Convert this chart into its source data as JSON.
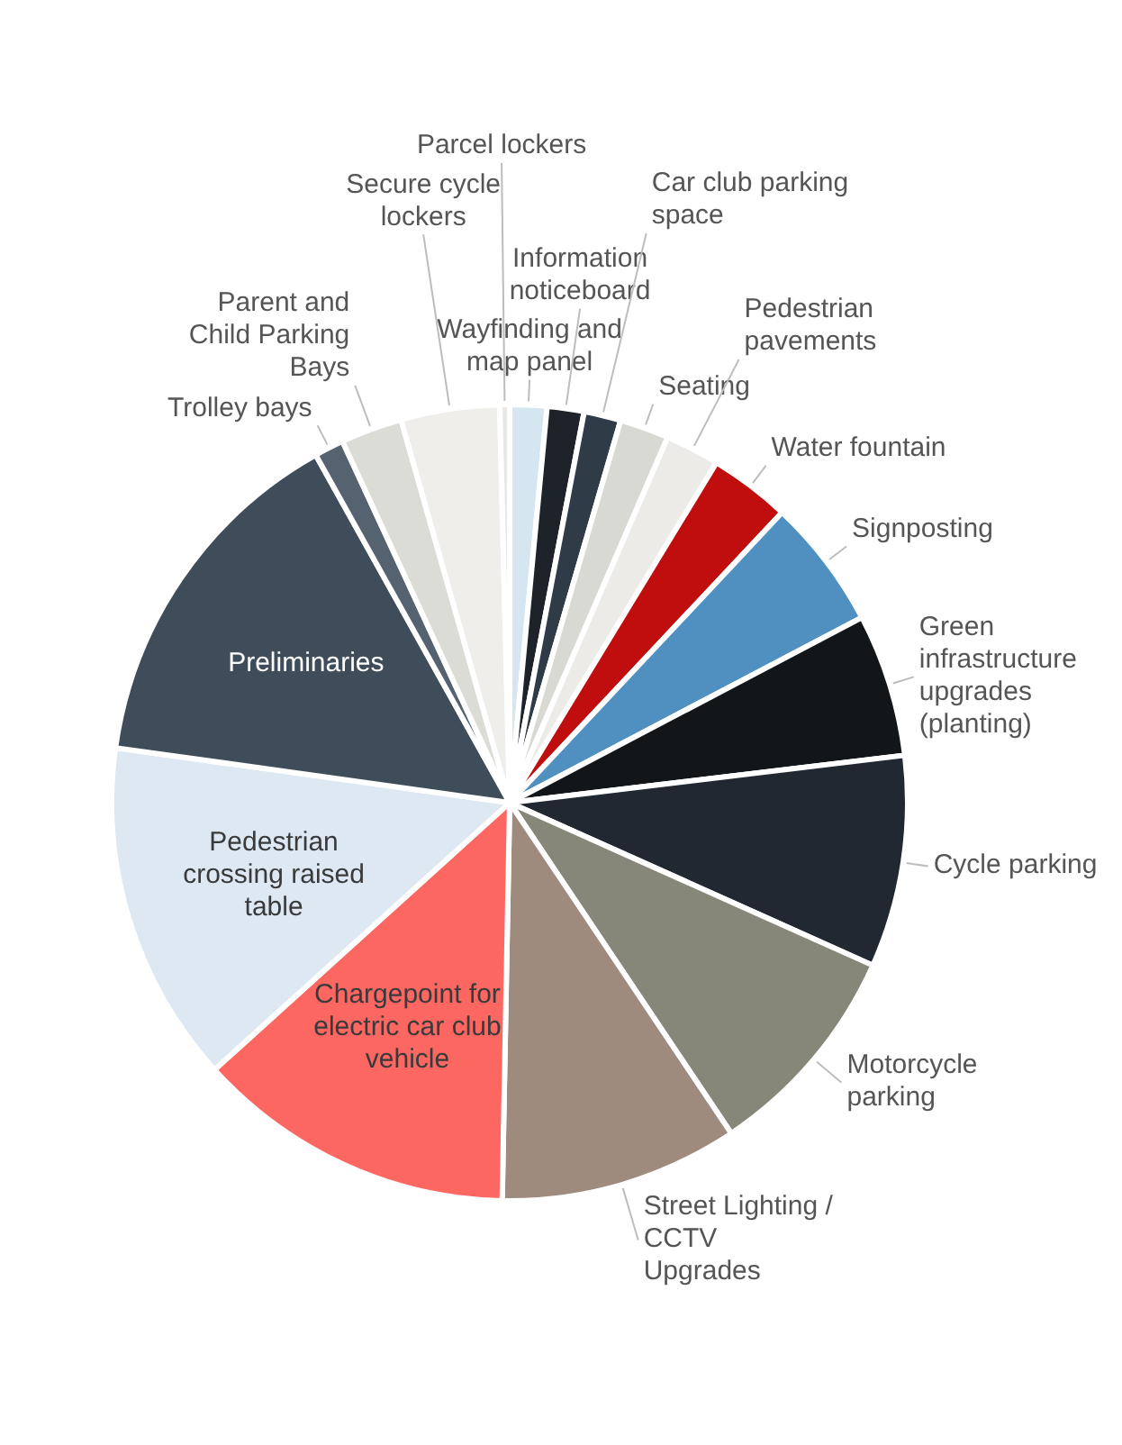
{
  "chart_data": {
    "type": "pie",
    "categories": [
      "Wayfinding and map panel",
      "Information noticeboard",
      "Car club parking space",
      "Seating",
      "Pedestrian pavements",
      "Water fountain",
      "Signposting",
      "Green infrastructure upgrades (planting)",
      "Cycle parking",
      "Motorcycle parking",
      "Street Lighting / CCTV Upgrades",
      "Chargepoint for electric car club vehicle",
      "Pedestrian crossing raised table",
      "Preliminaries",
      "Trolley bays",
      "Parent and Child Parking Bays",
      "Secure cycle lockers",
      "Parcel lockers"
    ],
    "values": [
      1.5,
      1.5,
      1.5,
      2,
      2.2,
      3.3,
      5.3,
      5.8,
      8.6,
      8.9,
      9.7,
      13,
      13.9,
      14.7,
      1.2,
      2.5,
      4,
      0.4
    ],
    "colors": [
      "#d6e6f0",
      "#1d2328",
      "#2f3b47",
      "#d8d9d3",
      "#ecebe8",
      "#c00d0d",
      "#4f90c0",
      "#131619",
      "#222831",
      "#868679",
      "#9e8b7d",
      "#fc6762",
      "#dde8f2",
      "#3f4d5b",
      "#556270",
      "#dcdcd6",
      "#efeeea",
      "#e8e8e4"
    ],
    "legend": false
  }
}
